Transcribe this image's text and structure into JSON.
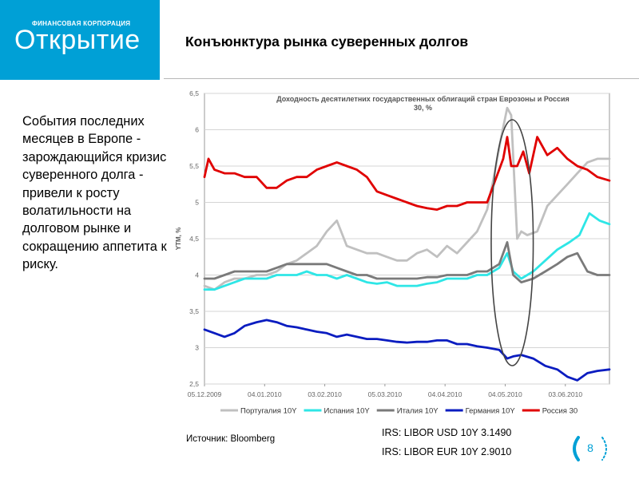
{
  "logo": {
    "subtitle": "ФИНАНСОВАЯ КОРПОРАЦИЯ",
    "name": "Открытие"
  },
  "slide_title": "Конъюнктура рынка суверенных долгов",
  "side_text": "События последних месяцев в Европе - зарождающийся кризис суверенного долга - привели к росту волатильности на долговом рынке и сокращению аппетита к риску.",
  "source": "Источник: Bloomberg",
  "irs": {
    "usd": "IRS: LIBOR USD 10Y 3.1490",
    "eur": "IRS: LIBOR EUR 10Y 2.9010"
  },
  "page_number": "8",
  "colors": {
    "accent": "#00a0d6"
  },
  "chart_data": {
    "type": "line",
    "title_line1": "Доходность десятилетних государственных облигаций стран Еврозоны и Россия",
    "title_line2": "30, %",
    "ylabel": "YTM, %",
    "xlabel": "",
    "ylim": [
      2.5,
      6.5
    ],
    "yticks": [
      "6,5",
      "6",
      "5,5",
      "5",
      "4,5",
      "4",
      "3,5",
      "3",
      "2,5"
    ],
    "ytick_values": [
      6.5,
      6,
      5.5,
      5,
      4.5,
      4,
      3.5,
      3,
      2.5
    ],
    "xlim": [
      "2009-12-05",
      "2010-06-25"
    ],
    "xticks": [
      "05.12.2009",
      "04.01.2010",
      "03.02.2010",
      "05.03.2010",
      "04.04.2010",
      "04.05.2010",
      "03.06.2010"
    ],
    "xtick_dates": [
      "2009-12-05",
      "2010-01-04",
      "2010-02-03",
      "2010-03-05",
      "2010-04-04",
      "2010-05-04",
      "2010-06-03"
    ],
    "grid": true,
    "legend_position": "bottom",
    "annotation": "ellipse around early May 2010 spike",
    "annotation_range": [
      "2010-05-01",
      "2010-05-14"
    ],
    "series": [
      {
        "name": "Португалия 10Y",
        "color": "#c0c0c0",
        "x": [
          "2009-12-05",
          "2009-12-10",
          "2009-12-15",
          "2009-12-20",
          "2009-12-25",
          "2009-12-31",
          "2010-01-05",
          "2010-01-10",
          "2010-01-15",
          "2010-01-20",
          "2010-01-25",
          "2010-01-30",
          "2010-02-04",
          "2010-02-09",
          "2010-02-14",
          "2010-02-19",
          "2010-02-24",
          "2010-03-01",
          "2010-03-06",
          "2010-03-11",
          "2010-03-16",
          "2010-03-21",
          "2010-03-26",
          "2010-03-31",
          "2010-04-05",
          "2010-04-10",
          "2010-04-15",
          "2010-04-20",
          "2010-04-25",
          "2010-04-28",
          "2010-05-02",
          "2010-05-05",
          "2010-05-07",
          "2010-05-10",
          "2010-05-12",
          "2010-05-15",
          "2010-05-20",
          "2010-05-25",
          "2010-05-30",
          "2010-06-04",
          "2010-06-09",
          "2010-06-14",
          "2010-06-19",
          "2010-06-25"
        ],
        "values": [
          3.85,
          3.8,
          3.9,
          3.95,
          3.95,
          4.0,
          4.0,
          4.05,
          4.15,
          4.2,
          4.3,
          4.4,
          4.6,
          4.75,
          4.4,
          4.35,
          4.3,
          4.3,
          4.25,
          4.2,
          4.2,
          4.3,
          4.35,
          4.25,
          4.4,
          4.3,
          4.45,
          4.6,
          4.9,
          5.3,
          5.9,
          6.3,
          6.2,
          4.5,
          4.6,
          4.55,
          4.6,
          4.95,
          5.1,
          5.25,
          5.4,
          5.55,
          5.6,
          5.6
        ]
      },
      {
        "name": "Испания 10Y",
        "color": "#2ee6e6",
        "x": [
          "2009-12-05",
          "2009-12-10",
          "2009-12-15",
          "2009-12-20",
          "2009-12-25",
          "2009-12-31",
          "2010-01-05",
          "2010-01-10",
          "2010-01-15",
          "2010-01-20",
          "2010-01-25",
          "2010-01-30",
          "2010-02-04",
          "2010-02-09",
          "2010-02-14",
          "2010-02-19",
          "2010-02-24",
          "2010-03-01",
          "2010-03-06",
          "2010-03-11",
          "2010-03-16",
          "2010-03-21",
          "2010-03-26",
          "2010-03-31",
          "2010-04-05",
          "2010-04-10",
          "2010-04-15",
          "2010-04-20",
          "2010-04-25",
          "2010-05-01",
          "2010-05-05",
          "2010-05-08",
          "2010-05-12",
          "2010-05-18",
          "2010-05-24",
          "2010-05-30",
          "2010-06-05",
          "2010-06-10",
          "2010-06-15",
          "2010-06-20",
          "2010-06-25"
        ],
        "values": [
          3.8,
          3.8,
          3.85,
          3.9,
          3.95,
          3.95,
          3.95,
          4.0,
          4.0,
          4.0,
          4.05,
          4.0,
          4.0,
          3.95,
          4.0,
          3.95,
          3.9,
          3.88,
          3.9,
          3.85,
          3.85,
          3.85,
          3.88,
          3.9,
          3.95,
          3.95,
          3.95,
          4.0,
          4.0,
          4.1,
          4.3,
          4.05,
          3.95,
          4.05,
          4.2,
          4.35,
          4.45,
          4.55,
          4.85,
          4.75,
          4.7
        ]
      },
      {
        "name": "Италия 10Y",
        "color": "#7a7a7a",
        "x": [
          "2009-12-05",
          "2009-12-10",
          "2009-12-15",
          "2009-12-20",
          "2009-12-25",
          "2009-12-31",
          "2010-01-05",
          "2010-01-10",
          "2010-01-15",
          "2010-01-20",
          "2010-01-25",
          "2010-01-30",
          "2010-02-04",
          "2010-02-09",
          "2010-02-14",
          "2010-02-19",
          "2010-02-24",
          "2010-03-01",
          "2010-03-06",
          "2010-03-11",
          "2010-03-16",
          "2010-03-21",
          "2010-03-26",
          "2010-03-31",
          "2010-04-05",
          "2010-04-10",
          "2010-04-15",
          "2010-04-20",
          "2010-04-25",
          "2010-05-01",
          "2010-05-05",
          "2010-05-08",
          "2010-05-12",
          "2010-05-18",
          "2010-05-24",
          "2010-05-30",
          "2010-06-04",
          "2010-06-09",
          "2010-06-14",
          "2010-06-19",
          "2010-06-25"
        ],
        "values": [
          3.95,
          3.95,
          4.0,
          4.05,
          4.05,
          4.05,
          4.05,
          4.1,
          4.15,
          4.15,
          4.15,
          4.15,
          4.15,
          4.1,
          4.05,
          4.0,
          4.0,
          3.95,
          3.95,
          3.95,
          3.95,
          3.95,
          3.97,
          3.97,
          4.0,
          4.0,
          4.0,
          4.05,
          4.05,
          4.15,
          4.45,
          4.0,
          3.9,
          3.95,
          4.05,
          4.15,
          4.25,
          4.3,
          4.05,
          4.0,
          4.0
        ]
      },
      {
        "name": "Германия 10Y",
        "color": "#0a1cc0",
        "x": [
          "2009-12-05",
          "2009-12-10",
          "2009-12-15",
          "2009-12-20",
          "2009-12-25",
          "2009-12-31",
          "2010-01-05",
          "2010-01-10",
          "2010-01-15",
          "2010-01-20",
          "2010-01-25",
          "2010-01-30",
          "2010-02-04",
          "2010-02-09",
          "2010-02-14",
          "2010-02-19",
          "2010-02-24",
          "2010-03-01",
          "2010-03-06",
          "2010-03-11",
          "2010-03-16",
          "2010-03-21",
          "2010-03-26",
          "2010-03-31",
          "2010-04-05",
          "2010-04-10",
          "2010-04-15",
          "2010-04-20",
          "2010-04-25",
          "2010-05-01",
          "2010-05-05",
          "2010-05-08",
          "2010-05-12",
          "2010-05-18",
          "2010-05-24",
          "2010-05-30",
          "2010-06-04",
          "2010-06-09",
          "2010-06-14",
          "2010-06-19",
          "2010-06-25"
        ],
        "values": [
          3.25,
          3.2,
          3.15,
          3.2,
          3.3,
          3.35,
          3.38,
          3.35,
          3.3,
          3.28,
          3.25,
          3.22,
          3.2,
          3.15,
          3.18,
          3.15,
          3.12,
          3.12,
          3.1,
          3.08,
          3.07,
          3.08,
          3.08,
          3.1,
          3.1,
          3.05,
          3.05,
          3.02,
          3.0,
          2.97,
          2.85,
          2.88,
          2.9,
          2.85,
          2.75,
          2.7,
          2.6,
          2.55,
          2.65,
          2.68,
          2.7
        ]
      },
      {
        "name": "Россия 30",
        "color": "#e00000",
        "x": [
          "2009-12-05",
          "2009-12-07",
          "2009-12-10",
          "2009-12-15",
          "2009-12-20",
          "2009-12-25",
          "2009-12-31",
          "2010-01-05",
          "2010-01-10",
          "2010-01-15",
          "2010-01-20",
          "2010-01-25",
          "2010-01-30",
          "2010-02-04",
          "2010-02-09",
          "2010-02-14",
          "2010-02-19",
          "2010-02-24",
          "2010-03-01",
          "2010-03-06",
          "2010-03-11",
          "2010-03-16",
          "2010-03-21",
          "2010-03-26",
          "2010-03-31",
          "2010-04-05",
          "2010-04-10",
          "2010-04-15",
          "2010-04-20",
          "2010-04-25",
          "2010-04-29",
          "2010-05-03",
          "2010-05-05",
          "2010-05-07",
          "2010-05-10",
          "2010-05-13",
          "2010-05-16",
          "2010-05-20",
          "2010-05-25",
          "2010-05-30",
          "2010-06-04",
          "2010-06-09",
          "2010-06-14",
          "2010-06-19",
          "2010-06-25"
        ],
        "values": [
          5.35,
          5.6,
          5.45,
          5.4,
          5.4,
          5.35,
          5.35,
          5.2,
          5.2,
          5.3,
          5.35,
          5.35,
          5.45,
          5.5,
          5.55,
          5.5,
          5.45,
          5.35,
          5.15,
          5.1,
          5.05,
          5.0,
          4.95,
          4.92,
          4.9,
          4.95,
          4.95,
          5.0,
          5.0,
          5.0,
          5.3,
          5.6,
          5.9,
          5.5,
          5.5,
          5.7,
          5.4,
          5.9,
          5.65,
          5.75,
          5.6,
          5.5,
          5.45,
          5.35,
          5.3
        ]
      }
    ]
  }
}
